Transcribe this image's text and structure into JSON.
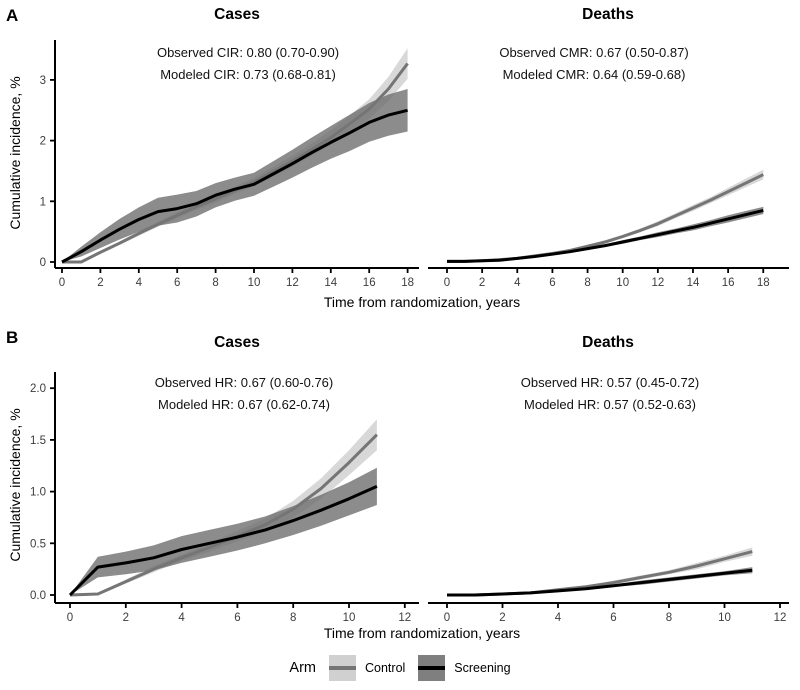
{
  "figure": {
    "rows": [
      {
        "letter": "A",
        "y_label": "Cumulative incidence, %",
        "x_label": "Time from randomization, years"
      },
      {
        "letter": "B",
        "y_label": "Cumulative incidence, %",
        "x_label": "Time from randomization, years"
      }
    ],
    "legend": {
      "title": "Arm",
      "items": [
        {
          "label": "Control",
          "box_color": "#d0d0d0",
          "line_color": "#757575"
        },
        {
          "label": "Screening",
          "box_color": "#7f7f7f",
          "line_color": "#000000"
        }
      ]
    }
  },
  "chart_data": [
    {
      "id": "a-cases",
      "panel": "A",
      "type": "line",
      "title": "Cases",
      "annotations": [
        "Observed CIR: 0.80 (0.70-0.90)",
        "Modeled CIR: 0.73 (0.68-0.81)"
      ],
      "xlabel": "Time from randomization, years",
      "ylabel": "Cumulative incidence, %",
      "xlim": [
        0,
        19
      ],
      "ylim": [
        0,
        3.6
      ],
      "x_ticks": [
        0,
        2,
        4,
        6,
        8,
        10,
        12,
        14,
        16,
        18
      ],
      "y_ticks": [
        {
          "value": 0,
          "label": "0"
        },
        {
          "value": 1,
          "label": "1"
        },
        {
          "value": 2,
          "label": "2"
        },
        {
          "value": 3,
          "label": "3"
        }
      ],
      "legend_position": "bottom",
      "series": [
        {
          "name": "Control",
          "line_color": "#757575",
          "ribbon_color": "#cdcdcd",
          "x": [
            0,
            1,
            2,
            3,
            4,
            5,
            6,
            7,
            8,
            9,
            10,
            11,
            12,
            13,
            14,
            15,
            16,
            17,
            18
          ],
          "y": [
            0,
            0,
            0.16,
            0.31,
            0.47,
            0.62,
            0.77,
            0.91,
            1.04,
            1.18,
            1.32,
            1.49,
            1.66,
            1.85,
            2.05,
            2.28,
            2.52,
            2.85,
            3.27
          ],
          "lo": [
            0,
            0,
            0.13,
            0.28,
            0.43,
            0.58,
            0.72,
            0.86,
            0.98,
            1.12,
            1.25,
            1.41,
            1.57,
            1.75,
            1.93,
            2.14,
            2.36,
            2.65,
            3.02
          ],
          "hi": [
            0,
            0.02,
            0.19,
            0.34,
            0.51,
            0.66,
            0.82,
            0.96,
            1.1,
            1.24,
            1.39,
            1.57,
            1.75,
            1.95,
            2.17,
            2.42,
            2.68,
            3.05,
            3.52
          ]
        },
        {
          "name": "Screening",
          "line_color": "#000000",
          "ribbon_color": "#6b6b6b",
          "x": [
            0,
            1,
            2,
            3,
            4,
            5,
            6,
            7,
            8,
            9,
            10,
            11,
            12,
            13,
            14,
            15,
            16,
            17,
            18
          ],
          "y": [
            0,
            0.17,
            0.36,
            0.54,
            0.7,
            0.83,
            0.88,
            0.96,
            1.1,
            1.2,
            1.28,
            1.45,
            1.62,
            1.8,
            1.97,
            2.13,
            2.3,
            2.42,
            2.5
          ],
          "lo": [
            0,
            0.09,
            0.23,
            0.37,
            0.5,
            0.6,
            0.65,
            0.75,
            0.9,
            1.01,
            1.09,
            1.24,
            1.39,
            1.55,
            1.7,
            1.83,
            1.98,
            2.08,
            2.15
          ],
          "hi": [
            0,
            0.25,
            0.49,
            0.71,
            0.9,
            1.06,
            1.11,
            1.17,
            1.3,
            1.39,
            1.47,
            1.66,
            1.85,
            2.05,
            2.24,
            2.43,
            2.62,
            2.76,
            2.85
          ]
        }
      ]
    },
    {
      "id": "a-deaths",
      "panel": "A",
      "type": "line",
      "title": "Deaths",
      "annotations": [
        "Observed CMR: 0.67 (0.50-0.87)",
        "Modeled CMR: 0.64 (0.59-0.68)"
      ],
      "xlabel": "Time from randomization, years",
      "ylabel": "Cumulative incidence, %",
      "xlim": [
        0,
        19
      ],
      "ylim": [
        0,
        3.6
      ],
      "x_ticks": [
        0,
        2,
        4,
        6,
        8,
        10,
        12,
        14,
        16,
        18
      ],
      "y_ticks": [],
      "series": [
        {
          "name": "Control",
          "line_color": "#757575",
          "ribbon_color": "#cdcdcd",
          "x": [
            0,
            1,
            2,
            3,
            4,
            5,
            6,
            7,
            8,
            9,
            10,
            11,
            12,
            13,
            14,
            15,
            16,
            17,
            18
          ],
          "y": [
            0.01,
            0.01,
            0.02,
            0.04,
            0.06,
            0.1,
            0.14,
            0.19,
            0.26,
            0.33,
            0.42,
            0.52,
            0.63,
            0.76,
            0.89,
            1.02,
            1.16,
            1.3,
            1.44
          ],
          "lo": [
            0.01,
            0.01,
            0.02,
            0.03,
            0.05,
            0.09,
            0.12,
            0.17,
            0.24,
            0.3,
            0.39,
            0.49,
            0.59,
            0.72,
            0.84,
            0.97,
            1.1,
            1.23,
            1.36
          ],
          "hi": [
            0.01,
            0.01,
            0.02,
            0.05,
            0.07,
            0.11,
            0.16,
            0.21,
            0.28,
            0.36,
            0.45,
            0.55,
            0.67,
            0.8,
            0.94,
            1.07,
            1.22,
            1.37,
            1.52
          ]
        },
        {
          "name": "Screening",
          "line_color": "#000000",
          "ribbon_color": "#6b6b6b",
          "x": [
            0,
            1,
            2,
            3,
            4,
            5,
            6,
            7,
            8,
            9,
            10,
            11,
            12,
            13,
            14,
            15,
            16,
            17,
            18
          ],
          "y": [
            0.01,
            0.01,
            0.02,
            0.03,
            0.06,
            0.09,
            0.13,
            0.17,
            0.22,
            0.27,
            0.33,
            0.39,
            0.45,
            0.51,
            0.57,
            0.64,
            0.71,
            0.78,
            0.85
          ],
          "lo": [
            0.01,
            0.01,
            0.02,
            0.02,
            0.05,
            0.08,
            0.11,
            0.15,
            0.2,
            0.25,
            0.3,
            0.36,
            0.41,
            0.47,
            0.52,
            0.59,
            0.65,
            0.72,
            0.79
          ],
          "hi": [
            0.01,
            0.01,
            0.02,
            0.04,
            0.07,
            0.1,
            0.15,
            0.19,
            0.24,
            0.29,
            0.36,
            0.42,
            0.49,
            0.55,
            0.62,
            0.69,
            0.77,
            0.84,
            0.91
          ]
        }
      ]
    },
    {
      "id": "b-cases",
      "panel": "B",
      "type": "line",
      "title": "Cases",
      "annotations": [
        "Observed HR: 0.67 (0.60-0.76)",
        "Modeled HR: 0.67 (0.62-0.74)"
      ],
      "xlabel": "Time from randomization, years",
      "ylabel": "Cumulative incidence, %",
      "xlim": [
        0,
        12.5
      ],
      "ylim": [
        0,
        2.15
      ],
      "x_ticks": [
        0,
        2,
        4,
        6,
        8,
        10,
        12
      ],
      "y_ticks": [
        {
          "value": 0,
          "label": "0.0"
        },
        {
          "value": 0.5,
          "label": "0.5"
        },
        {
          "value": 1,
          "label": "1.0"
        },
        {
          "value": 1.5,
          "label": "1.5"
        },
        {
          "value": 2,
          "label": "2.0"
        }
      ],
      "series": [
        {
          "name": "Control",
          "line_color": "#757575",
          "ribbon_color": "#cdcdcd",
          "x": [
            0,
            1,
            2,
            3,
            4,
            5,
            6,
            7,
            8,
            9,
            10,
            11
          ],
          "y": [
            0,
            0.01,
            0.13,
            0.25,
            0.36,
            0.46,
            0.57,
            0.68,
            0.83,
            1.03,
            1.28,
            1.55
          ],
          "lo": [
            0,
            0,
            0.11,
            0.22,
            0.33,
            0.42,
            0.52,
            0.62,
            0.75,
            0.93,
            1.16,
            1.4
          ],
          "hi": [
            0,
            0.02,
            0.15,
            0.28,
            0.39,
            0.5,
            0.62,
            0.74,
            0.91,
            1.13,
            1.4,
            1.7
          ]
        },
        {
          "name": "Screening",
          "line_color": "#000000",
          "ribbon_color": "#6b6b6b",
          "x": [
            0,
            1,
            2,
            3,
            4,
            5,
            6,
            7,
            8,
            9,
            10,
            11
          ],
          "y": [
            0,
            0.27,
            0.31,
            0.36,
            0.44,
            0.5,
            0.56,
            0.63,
            0.72,
            0.82,
            0.93,
            1.05
          ],
          "lo": [
            0,
            0.17,
            0.2,
            0.24,
            0.31,
            0.37,
            0.43,
            0.5,
            0.58,
            0.67,
            0.77,
            0.87
          ],
          "hi": [
            0,
            0.37,
            0.42,
            0.48,
            0.57,
            0.63,
            0.69,
            0.76,
            0.86,
            0.97,
            1.09,
            1.23
          ]
        }
      ]
    },
    {
      "id": "b-deaths",
      "panel": "B",
      "type": "line",
      "title": "Deaths",
      "annotations": [
        "Observed HR: 0.57 (0.45-0.72)",
        "Modeled HR: 0.57 (0.52-0.63)"
      ],
      "xlabel": "Time from randomization, years",
      "ylabel": "Cumulative incidence, %",
      "xlim": [
        0,
        12.5
      ],
      "ylim": [
        0,
        2.15
      ],
      "x_ticks": [
        0,
        2,
        4,
        6,
        8,
        10,
        12
      ],
      "y_ticks": [],
      "series": [
        {
          "name": "Control",
          "line_color": "#757575",
          "ribbon_color": "#cdcdcd",
          "x": [
            0,
            1,
            2,
            3,
            4,
            5,
            6,
            7,
            8,
            9,
            10,
            11
          ],
          "y": [
            0,
            0,
            0.01,
            0.02,
            0.05,
            0.08,
            0.12,
            0.17,
            0.22,
            0.28,
            0.35,
            0.42
          ],
          "lo": [
            0,
            0,
            0.01,
            0.01,
            0.04,
            0.07,
            0.1,
            0.15,
            0.2,
            0.25,
            0.32,
            0.38
          ],
          "hi": [
            0,
            0,
            0.01,
            0.03,
            0.06,
            0.09,
            0.14,
            0.19,
            0.24,
            0.31,
            0.38,
            0.46
          ]
        },
        {
          "name": "Screening",
          "line_color": "#000000",
          "ribbon_color": "#6b6b6b",
          "x": [
            0,
            1,
            2,
            3,
            4,
            5,
            6,
            7,
            8,
            9,
            10,
            11
          ],
          "y": [
            0,
            0,
            0.01,
            0.02,
            0.04,
            0.06,
            0.09,
            0.12,
            0.15,
            0.18,
            0.21,
            0.24
          ],
          "lo": [
            0,
            0,
            0.01,
            0.01,
            0.03,
            0.05,
            0.08,
            0.1,
            0.13,
            0.16,
            0.19,
            0.21
          ],
          "hi": [
            0,
            0,
            0.01,
            0.03,
            0.05,
            0.07,
            0.1,
            0.14,
            0.17,
            0.2,
            0.23,
            0.27
          ]
        }
      ]
    }
  ]
}
